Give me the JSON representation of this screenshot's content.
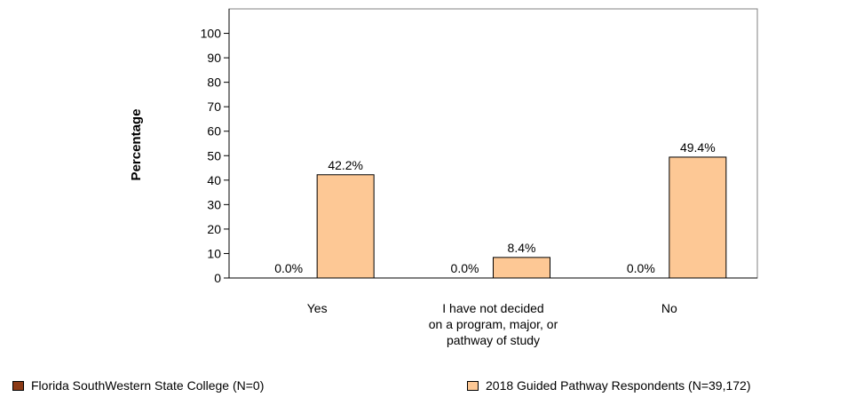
{
  "chart_data": {
    "type": "bar",
    "ylabel": "Percentage",
    "xlabel": "",
    "ylim": [
      0,
      110
    ],
    "yticks": [
      0,
      10,
      20,
      30,
      40,
      50,
      60,
      70,
      80,
      90,
      100
    ],
    "categories": [
      [
        "Yes"
      ],
      [
        "I have not decided",
        "on a program, major, or",
        "pathway of study"
      ],
      [
        "No"
      ]
    ],
    "series": [
      {
        "name": "Florida SouthWestern State College (N=0)",
        "color": "#8b3a16",
        "values": [
          0.0,
          0.0,
          0.0
        ],
        "labels": [
          "0.0%",
          "0.0%",
          "0.0%"
        ]
      },
      {
        "name": "2018 Guided Pathway Respondents (N=39,172)",
        "color": "#fdc895",
        "values": [
          42.2,
          8.4,
          49.4
        ],
        "labels": [
          "42.2%",
          "8.4%",
          "49.4%"
        ]
      }
    ],
    "legend_position": "bottom",
    "grid": false
  }
}
